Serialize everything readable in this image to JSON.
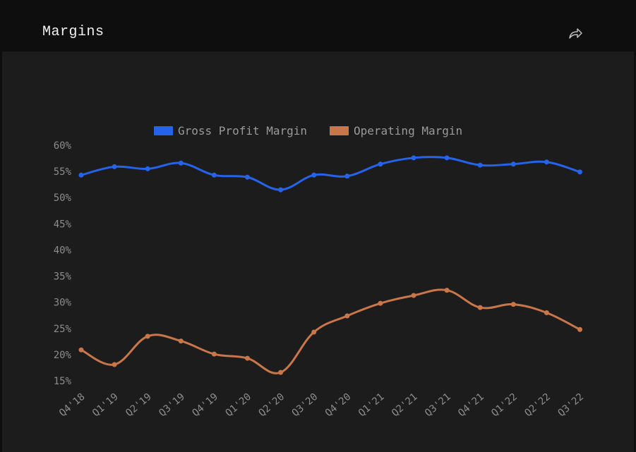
{
  "header": {
    "title": "Margins",
    "share_icon": "share-arrow-icon"
  },
  "colors": {
    "background": "#1c1c1c",
    "header": "#0e0e0e",
    "gross": "#2563eb",
    "operating": "#c8764a",
    "tick": "#8c8c8c"
  },
  "chart_data": {
    "type": "line",
    "title": "",
    "xlabel": "",
    "ylabel": "",
    "legend_position": "top-center",
    "grid": false,
    "categories": [
      "Q4'18",
      "Q1'19",
      "Q2'19",
      "Q3'19",
      "Q4'19",
      "Q1'20",
      "Q2'20",
      "Q3'20",
      "Q4'20",
      "Q1'21",
      "Q2'21",
      "Q3'21",
      "Q4'21",
      "Q1'22",
      "Q2'22",
      "Q3'22"
    ],
    "y_ticks": [
      "15%",
      "20%",
      "25%",
      "30%",
      "35%",
      "40%",
      "45%",
      "50%",
      "55%",
      "60%"
    ],
    "ylim": [
      15,
      60
    ],
    "series": [
      {
        "name": "Gross Profit Margin",
        "color": "#2563eb",
        "values": [
          54.3,
          55.9,
          55.5,
          56.6,
          54.3,
          53.9,
          51.5,
          54.3,
          54.1,
          56.4,
          57.6,
          57.6,
          56.2,
          56.4,
          56.8,
          54.9
        ]
      },
      {
        "name": "Operating Margin",
        "color": "#c8764a",
        "values": [
          20.9,
          18.1,
          23.5,
          22.6,
          20.1,
          19.3,
          16.6,
          24.3,
          27.4,
          29.8,
          31.3,
          32.3,
          29.0,
          29.6,
          28.0,
          24.8
        ]
      }
    ]
  }
}
